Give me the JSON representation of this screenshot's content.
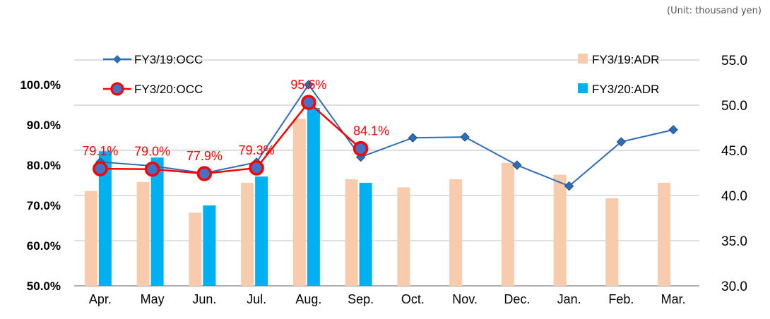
{
  "unit_note": "(Unit: thousand yen)",
  "colors": {
    "occ19": "#2e6db4",
    "occ20": "#ff0000",
    "adr19": "#f8cbad",
    "adr20": "#00b0f0",
    "grid": "#bfbfbf",
    "label": "#ff0000"
  },
  "chart_data": {
    "type": "bar+line",
    "categories": [
      "Apr.",
      "May",
      "Jun.",
      "Jul.",
      "Aug.",
      "Sep.",
      "Oct.",
      "Nov.",
      "Dec.",
      "Jan.",
      "Feb.",
      "Mar."
    ],
    "y_left": {
      "range": [
        50,
        100
      ],
      "ticks": [
        "50.0%",
        "60.0%",
        "70.0%",
        "80.0%",
        "90.0%",
        "100.0%"
      ],
      "tick_values": [
        50,
        60,
        70,
        80,
        90,
        100
      ]
    },
    "y_right": {
      "range": [
        30,
        55
      ],
      "ticks": [
        "30.0",
        "35.0",
        "40.0",
        "45.0",
        "50.0",
        "55.0"
      ],
      "tick_values": [
        30,
        35,
        40,
        45,
        50,
        55
      ]
    },
    "grid": true,
    "legend": [
      {
        "name": "FY3/19:OCC",
        "key": "occ19",
        "kind": "line-diamond",
        "position": "top-left"
      },
      {
        "name": "FY3/20:OCC",
        "key": "occ20",
        "kind": "line-circle",
        "position": "top-left"
      },
      {
        "name": "FY3/19:ADR",
        "key": "adr19",
        "kind": "bar",
        "position": "top-right"
      },
      {
        "name": "FY3/20:ADR",
        "key": "adr20",
        "kind": "bar",
        "position": "top-right"
      }
    ],
    "series": [
      {
        "name": "FY3/19:ADR",
        "key": "adr19",
        "type": "bar",
        "axis": "right",
        "values": [
          40.5,
          41.5,
          38.1,
          41.4,
          48.5,
          41.8,
          40.9,
          41.8,
          43.6,
          42.3,
          39.7,
          41.4
        ]
      },
      {
        "name": "FY3/20:ADR",
        "key": "adr20",
        "type": "bar",
        "axis": "right",
        "values": [
          44.9,
          44.2,
          38.9,
          42.1,
          49.7,
          41.4,
          null,
          null,
          null,
          null,
          null,
          null
        ]
      },
      {
        "name": "FY3/19:OCC",
        "key": "occ19",
        "type": "line",
        "axis": "left",
        "values": [
          80.8,
          79.8,
          78.0,
          80.7,
          100.0,
          82.0,
          86.8,
          87.0,
          80.0,
          74.8,
          85.8,
          88.8
        ]
      },
      {
        "name": "FY3/20:OCC",
        "key": "occ20",
        "type": "line",
        "axis": "left",
        "values": [
          79.1,
          79.0,
          77.9,
          79.3,
          95.6,
          84.1,
          null,
          null,
          null,
          null,
          null,
          null
        ],
        "data_labels": [
          "79.1%",
          "79.0%",
          "77.9%",
          "79.3%",
          "95.6%",
          "84.1%"
        ]
      }
    ]
  }
}
